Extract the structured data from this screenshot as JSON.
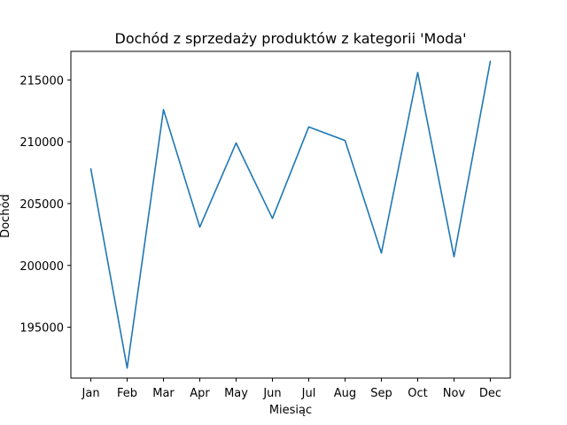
{
  "chart_data": {
    "type": "line",
    "title": "Dochód z sprzedaży produktów z kategorii 'Moda'",
    "xlabel": "Miesiąc",
    "ylabel": "Dochód",
    "categories": [
      "Jan",
      "Feb",
      "Mar",
      "Apr",
      "May",
      "Jun",
      "Jul",
      "Aug",
      "Sep",
      "Oct",
      "Nov",
      "Dec"
    ],
    "series": [
      {
        "values": [
          207800,
          191700,
          212600,
          203100,
          209900,
          203800,
          211200,
          210100,
          201000,
          215600,
          200700,
          216500
        ],
        "color": "#1f77b4"
      }
    ],
    "ylim": [
      190890,
      217310
    ],
    "yticks": [
      195000,
      200000,
      205000,
      210000,
      215000
    ],
    "grid": false,
    "legend": "none"
  }
}
